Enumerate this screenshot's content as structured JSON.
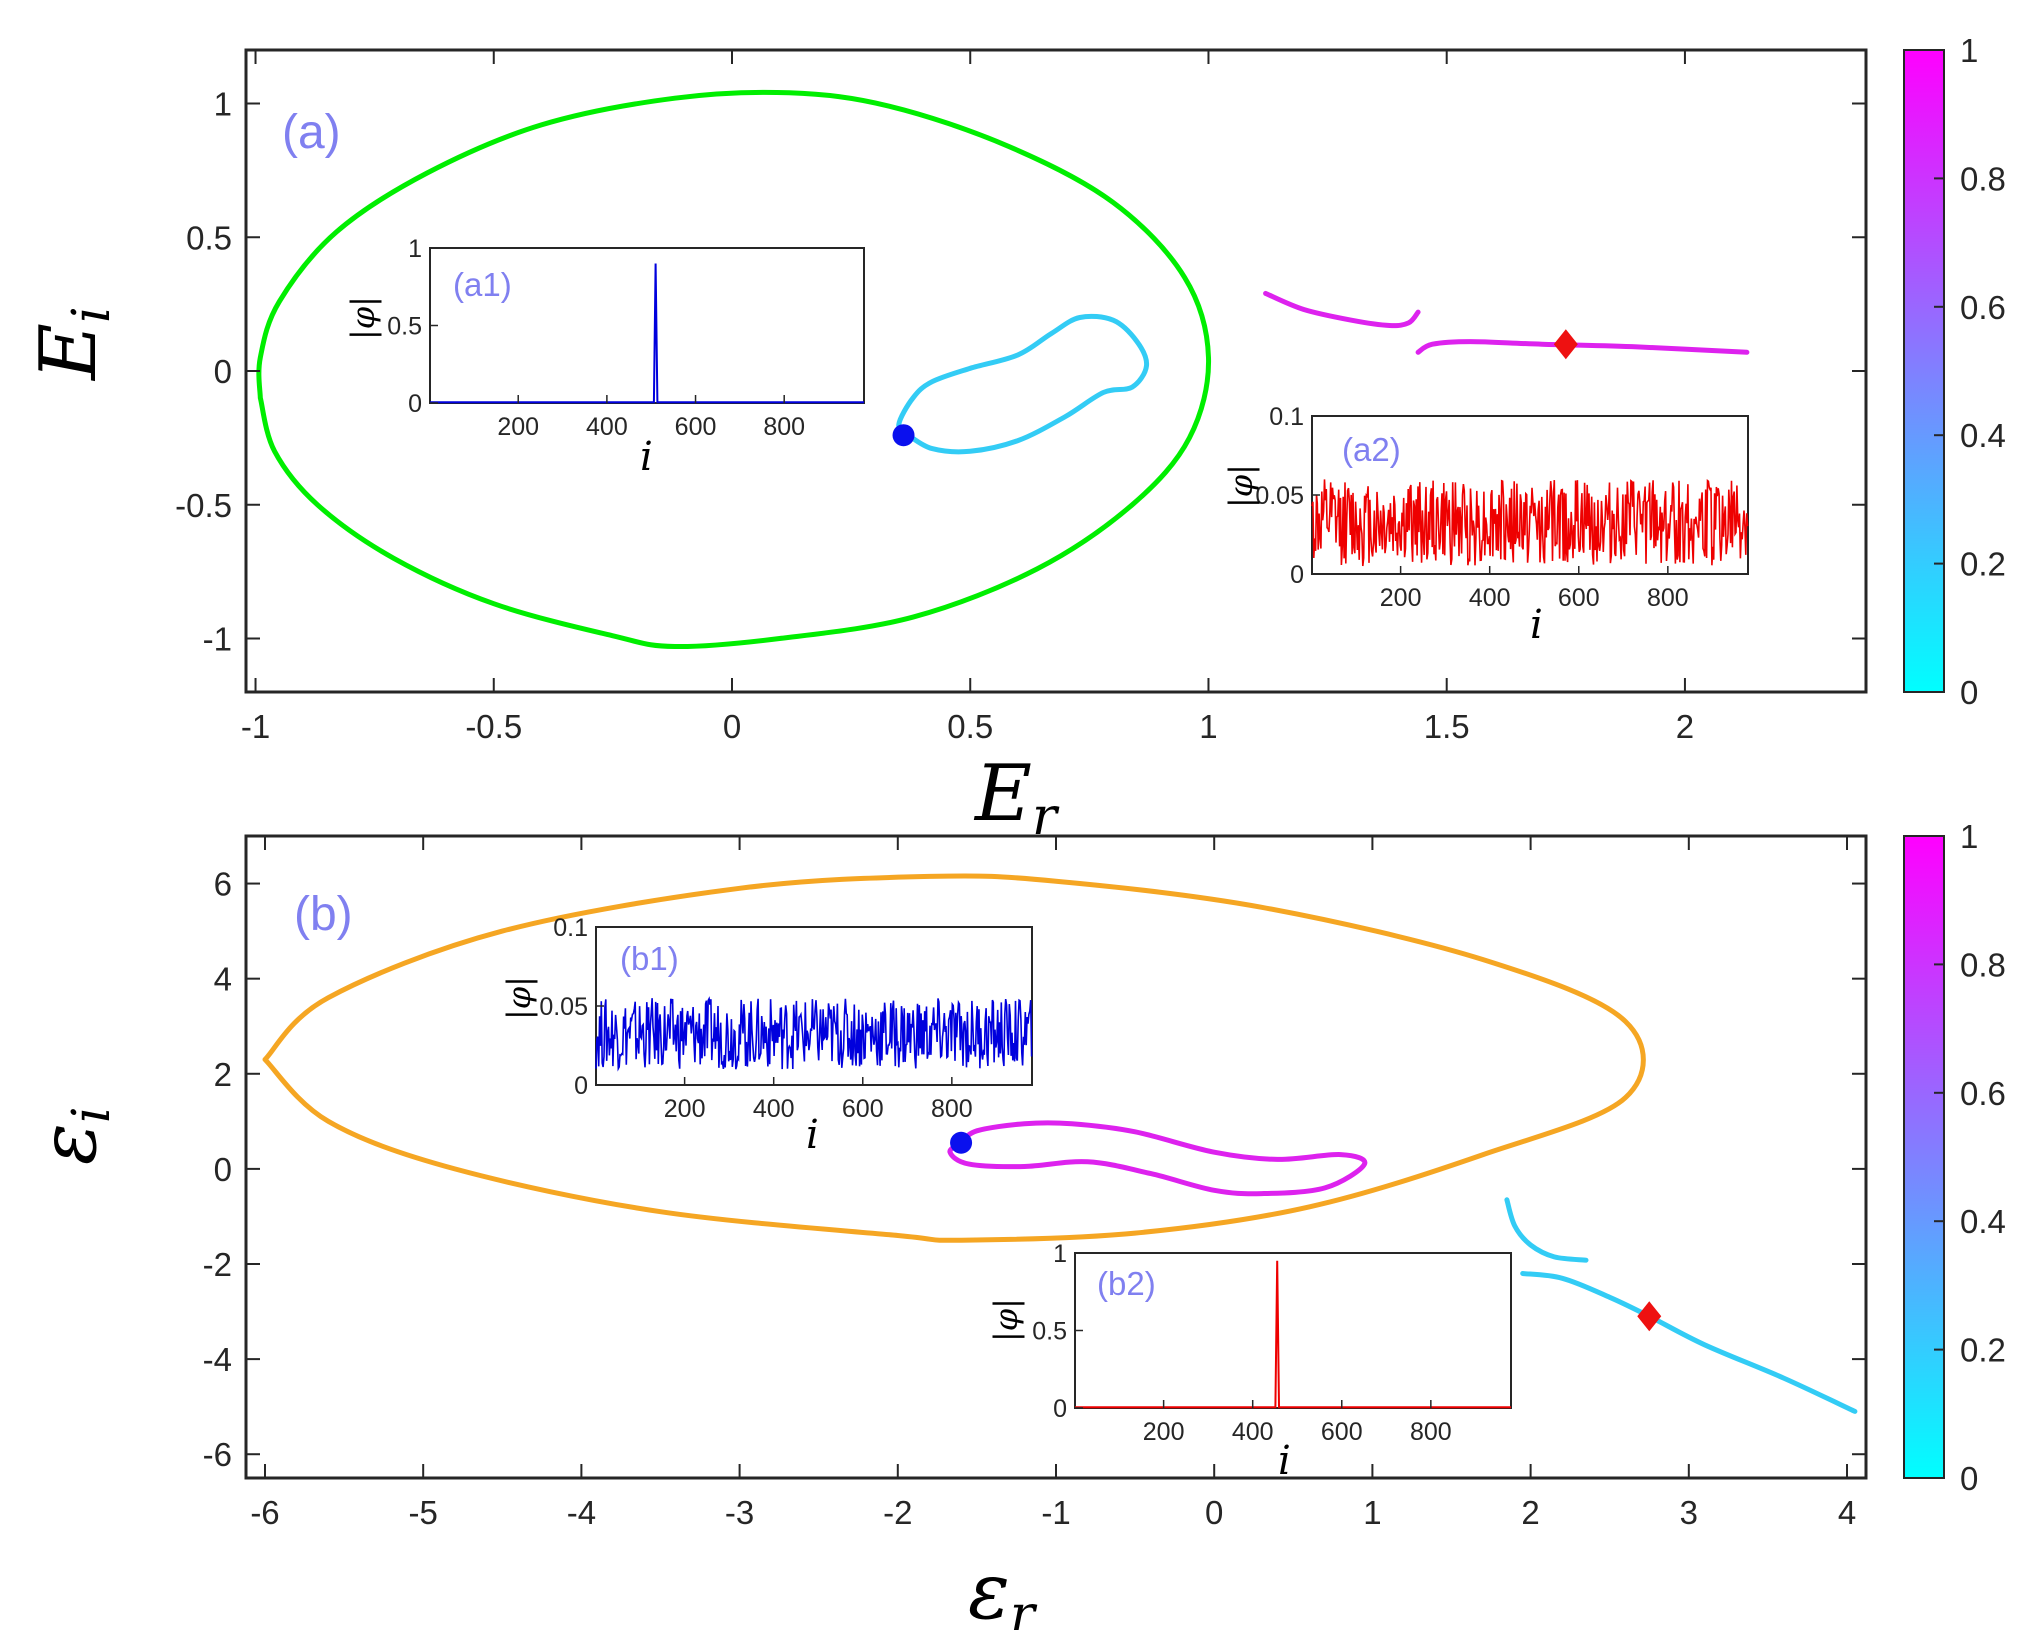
{
  "chart_data": [
    {
      "id": "a",
      "type": "line",
      "panel_label": "(a)",
      "xlabel": "E_r",
      "ylabel": "E_i",
      "xlabel_parts": {
        "base": "E",
        "sub": "r"
      },
      "ylabel_parts": {
        "base": "E",
        "sub": "i"
      },
      "xlim": [
        -1.02,
        2.38
      ],
      "ylim": [
        -1.2,
        1.2
      ],
      "xticks": [
        -1,
        -0.5,
        0,
        0.5,
        1,
        1.5,
        2
      ],
      "yticks": [
        -1,
        -0.5,
        0,
        0.5,
        1
      ],
      "xtick_labels": [
        "-1",
        "-0.5",
        "0",
        "0.5",
        "1",
        "1.5",
        "2"
      ],
      "ytick_labels": [
        "-1",
        "-0.5",
        "0",
        "0.5",
        "1"
      ],
      "colorbar": {
        "range": [
          0,
          1
        ],
        "ticks": [
          "0",
          "0.2",
          "0.4",
          "0.6",
          "0.8",
          "1"
        ],
        "colors": [
          "#00ffff",
          "#ff00ff"
        ]
      },
      "series": [
        {
          "color": "#00ee00",
          "style": "line",
          "points": [
            [
              -0.99,
              -0.1
            ],
            [
              -0.96,
              -0.3
            ],
            [
              -0.87,
              -0.5
            ],
            [
              -0.71,
              -0.7
            ],
            [
              -0.5,
              -0.87
            ],
            [
              -0.25,
              -0.99
            ],
            [
              -0.12,
              -1.03
            ],
            [
              0.1,
              -1.0
            ],
            [
              0.38,
              -0.92
            ],
            [
              0.64,
              -0.74
            ],
            [
              0.84,
              -0.5
            ],
            [
              0.96,
              -0.25
            ],
            [
              1.0,
              0.05
            ],
            [
              0.95,
              0.35
            ],
            [
              0.8,
              0.63
            ],
            [
              0.58,
              0.84
            ],
            [
              0.33,
              0.99
            ],
            [
              0.12,
              1.04
            ],
            [
              -0.12,
              1.02
            ],
            [
              -0.4,
              0.92
            ],
            [
              -0.64,
              0.74
            ],
            [
              -0.83,
              0.52
            ],
            [
              -0.95,
              0.26
            ],
            [
              -0.99,
              0.05
            ],
            [
              -0.99,
              -0.1
            ]
          ]
        },
        {
          "color": "#33ccf5",
          "style": "line",
          "points": [
            [
              0.37,
              -0.24
            ],
            [
              0.42,
              -0.29
            ],
            [
              0.5,
              -0.3
            ],
            [
              0.6,
              -0.26
            ],
            [
              0.7,
              -0.17
            ],
            [
              0.78,
              -0.08
            ],
            [
              0.84,
              -0.06
            ],
            [
              0.87,
              0.02
            ],
            [
              0.85,
              0.11
            ],
            [
              0.8,
              0.19
            ],
            [
              0.73,
              0.2
            ],
            [
              0.67,
              0.14
            ],
            [
              0.6,
              0.06
            ],
            [
              0.5,
              0.01
            ],
            [
              0.42,
              -0.04
            ],
            [
              0.38,
              -0.1
            ],
            [
              0.35,
              -0.2
            ],
            [
              0.37,
              -0.24
            ]
          ]
        },
        {
          "color": "#dd22ee",
          "style": "line",
          "points": [
            [
              1.12,
              0.29
            ],
            [
              1.2,
              0.23
            ],
            [
              1.3,
              0.19
            ],
            [
              1.38,
              0.17
            ],
            [
              1.42,
              0.18
            ],
            [
              1.44,
              0.22
            ]
          ]
        },
        {
          "color": "#dd22ee",
          "style": "line",
          "points": [
            [
              1.44,
              0.07
            ],
            [
              1.47,
              0.1
            ],
            [
              1.55,
              0.11
            ],
            [
              1.7,
              0.1
            ],
            [
              1.9,
              0.09
            ],
            [
              2.13,
              0.07
            ]
          ]
        }
      ],
      "markers": [
        {
          "x": 0.36,
          "y": -0.24,
          "shape": "circle",
          "color": "#0a10ee"
        },
        {
          "x": 1.75,
          "y": 0.1,
          "shape": "diamond",
          "color": "#ee1111"
        }
      ],
      "insets": [
        {
          "label": "(a1)",
          "ylabel": "|φ|",
          "xlabel": "i",
          "color": "#0000dd",
          "profile": "peak",
          "peak_at": 510,
          "peak_height": 0.9,
          "baseline": 0.005,
          "xlim": [
            1,
            980
          ],
          "ylim": [
            0,
            1
          ],
          "xticks": [
            "200",
            "400",
            "600",
            "800"
          ],
          "yticks": [
            "0",
            "0.5",
            "1"
          ]
        },
        {
          "label": "(a2)",
          "ylabel": "|φ|",
          "xlabel": "i",
          "color": "#ee0000",
          "profile": "noise",
          "noise_range": [
            0.005,
            0.06
          ],
          "xlim": [
            1,
            980
          ],
          "ylim": [
            0,
            0.1
          ],
          "xticks": [
            "200",
            "400",
            "600",
            "800"
          ],
          "yticks": [
            "0",
            "0.05",
            "0.1"
          ]
        }
      ]
    },
    {
      "id": "b",
      "type": "line",
      "panel_label": "(b)",
      "xlabel": "ε_r",
      "ylabel": "ε_i",
      "xlabel_parts": {
        "base": "ε",
        "sub": "r"
      },
      "ylabel_parts": {
        "base": "ε",
        "sub": "i"
      },
      "xlim": [
        -6.12,
        4.12
      ],
      "ylim": [
        -6.5,
        7.0
      ],
      "xticks": [
        -6,
        -5,
        -4,
        -3,
        -2,
        -1,
        0,
        1,
        2,
        3,
        4
      ],
      "yticks": [
        -6,
        -4,
        -2,
        0,
        2,
        4,
        6
      ],
      "xtick_labels": [
        "-6",
        "-5",
        "-4",
        "-3",
        "-2",
        "-1",
        "0",
        "1",
        "2",
        "3",
        "4"
      ],
      "ytick_labels": [
        "-6",
        "-4",
        "-2",
        "0",
        "2",
        "4",
        "6"
      ],
      "colorbar": {
        "range": [
          0,
          1
        ],
        "ticks": [
          "0",
          "0.2",
          "0.4",
          "0.6",
          "0.8",
          "1"
        ],
        "colors": [
          "#00ffff",
          "#ff00ff"
        ]
      },
      "series": [
        {
          "color": "#f5a623",
          "style": "line",
          "points": [
            [
              -6.0,
              2.3
            ],
            [
              -5.6,
              1.0
            ],
            [
              -4.8,
              0.0
            ],
            [
              -3.5,
              -0.9
            ],
            [
              -2.0,
              -1.4
            ],
            [
              -1.6,
              -1.5
            ],
            [
              -0.5,
              -1.35
            ],
            [
              0.6,
              -0.8
            ],
            [
              1.7,
              0.3
            ],
            [
              2.6,
              1.5
            ],
            [
              2.6,
              3.1
            ],
            [
              1.7,
              4.4
            ],
            [
              0.3,
              5.5
            ],
            [
              -1.0,
              6.05
            ],
            [
              -1.8,
              6.15
            ],
            [
              -3.0,
              5.9
            ],
            [
              -4.5,
              5.0
            ],
            [
              -5.6,
              3.6
            ],
            [
              -6.0,
              2.3
            ]
          ]
        },
        {
          "color": "#dd22ee",
          "style": "line",
          "points": [
            [
              -1.6,
              0.55
            ],
            [
              -1.5,
              0.8
            ],
            [
              -1.2,
              0.95
            ],
            [
              -0.9,
              0.95
            ],
            [
              -0.5,
              0.78
            ],
            [
              0.0,
              0.35
            ],
            [
              0.4,
              0.2
            ],
            [
              0.8,
              0.3
            ],
            [
              0.95,
              0.1
            ],
            [
              0.7,
              -0.4
            ],
            [
              0.3,
              -0.52
            ],
            [
              0.0,
              -0.45
            ],
            [
              -0.4,
              -0.1
            ],
            [
              -0.8,
              0.15
            ],
            [
              -1.2,
              0.05
            ],
            [
              -1.55,
              0.1
            ],
            [
              -1.67,
              0.35
            ],
            [
              -1.6,
              0.55
            ]
          ]
        },
        {
          "color": "#33ccf5",
          "style": "line",
          "points": [
            [
              1.85,
              -0.65
            ],
            [
              1.9,
              -1.2
            ],
            [
              2.0,
              -1.6
            ],
            [
              2.15,
              -1.85
            ],
            [
              2.35,
              -1.92
            ]
          ]
        },
        {
          "color": "#33ccf5",
          "style": "line",
          "points": [
            [
              1.95,
              -2.2
            ],
            [
              2.2,
              -2.3
            ],
            [
              2.5,
              -2.7
            ],
            [
              2.75,
              -3.1
            ],
            [
              3.1,
              -3.7
            ],
            [
              3.6,
              -4.4
            ],
            [
              4.05,
              -5.1
            ]
          ]
        }
      ],
      "markers": [
        {
          "x": -1.6,
          "y": 0.55,
          "shape": "circle",
          "color": "#0a10ee"
        },
        {
          "x": 2.75,
          "y": -3.1,
          "shape": "diamond",
          "color": "#ee1111"
        }
      ],
      "insets": [
        {
          "label": "(b1)",
          "ylabel": "|φ|",
          "xlabel": "i",
          "color": "#0000dd",
          "profile": "noise",
          "noise_range": [
            0.01,
            0.055
          ],
          "xlim": [
            1,
            980
          ],
          "ylim": [
            0,
            0.1
          ],
          "xticks": [
            "200",
            "400",
            "600",
            "800"
          ],
          "yticks": [
            "0",
            "0.05",
            "0.1"
          ]
        },
        {
          "label": "(b2)",
          "ylabel": "|φ|",
          "xlabel": "i",
          "color": "#ee0000",
          "profile": "peak",
          "peak_at": 455,
          "peak_height": 0.95,
          "baseline": 0.005,
          "xlim": [
            1,
            980
          ],
          "ylim": [
            0,
            1
          ],
          "xticks": [
            "200",
            "400",
            "600",
            "800"
          ],
          "yticks": [
            "0",
            "0.5",
            "1"
          ]
        }
      ]
    }
  ]
}
